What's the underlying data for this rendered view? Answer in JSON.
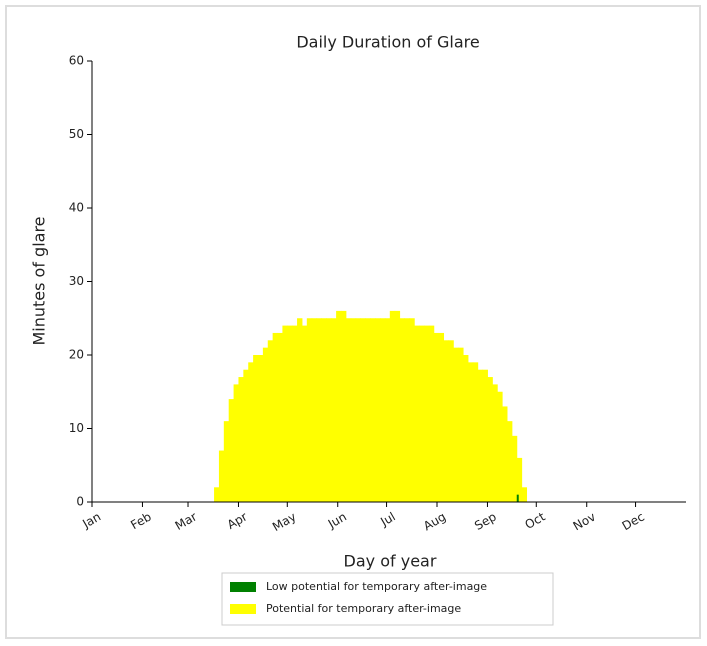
{
  "chart_data": {
    "type": "bar",
    "title": "Daily Duration of Glare",
    "xlabel": "Day of year",
    "ylabel": "Minutes of glare",
    "xlim": [
      1,
      366
    ],
    "xticks": [
      {
        "value": 1,
        "label": "Jan"
      },
      {
        "value": 32,
        "label": "Feb"
      },
      {
        "value": 60,
        "label": "Mar"
      },
      {
        "value": 91,
        "label": "Apr"
      },
      {
        "value": 121,
        "label": "May"
      },
      {
        "value": 152,
        "label": "Jun"
      },
      {
        "value": 182,
        "label": "Jul"
      },
      {
        "value": 213,
        "label": "Aug"
      },
      {
        "value": 244,
        "label": "Sep"
      },
      {
        "value": 274,
        "label": "Oct"
      },
      {
        "value": 305,
        "label": "Nov"
      },
      {
        "value": 335,
        "label": "Dec"
      }
    ],
    "ylim": [
      0,
      60
    ],
    "yticks": [
      0,
      10,
      20,
      30,
      40,
      50,
      60
    ],
    "series": [
      {
        "name": "Low potential for temporary after-image",
        "color": "#008000",
        "x": [
          262
        ],
        "values": [
          1
        ]
      },
      {
        "name": "Potential for temporary after-image",
        "color": "#ffff00",
        "x": [
          76,
          79,
          82,
          85,
          88,
          91,
          94,
          97,
          100,
          103,
          106,
          109,
          112,
          115,
          118,
          121,
          124,
          127,
          130,
          133,
          136,
          139,
          142,
          145,
          148,
          151,
          154,
          157,
          160,
          163,
          166,
          169,
          172,
          175,
          178,
          181,
          184,
          187,
          190,
          193,
          196,
          199,
          202,
          205,
          208,
          211,
          214,
          217,
          220,
          223,
          226,
          229,
          232,
          235,
          238,
          241,
          244,
          247,
          250,
          253,
          256,
          259,
          262,
          265
        ],
        "values": [
          2,
          7,
          11,
          14,
          16,
          17,
          18,
          19,
          20,
          20,
          21,
          22,
          23,
          23,
          24,
          24,
          24,
          25,
          24,
          25,
          25,
          25,
          25,
          25,
          25,
          26,
          26,
          25,
          25,
          25,
          25,
          25,
          25,
          25,
          25,
          25,
          26,
          26,
          25,
          25,
          25,
          24,
          24,
          24,
          24,
          23,
          23,
          22,
          22,
          21,
          21,
          20,
          19,
          19,
          18,
          18,
          17,
          16,
          15,
          13,
          11,
          9,
          6,
          2
        ]
      }
    ]
  }
}
